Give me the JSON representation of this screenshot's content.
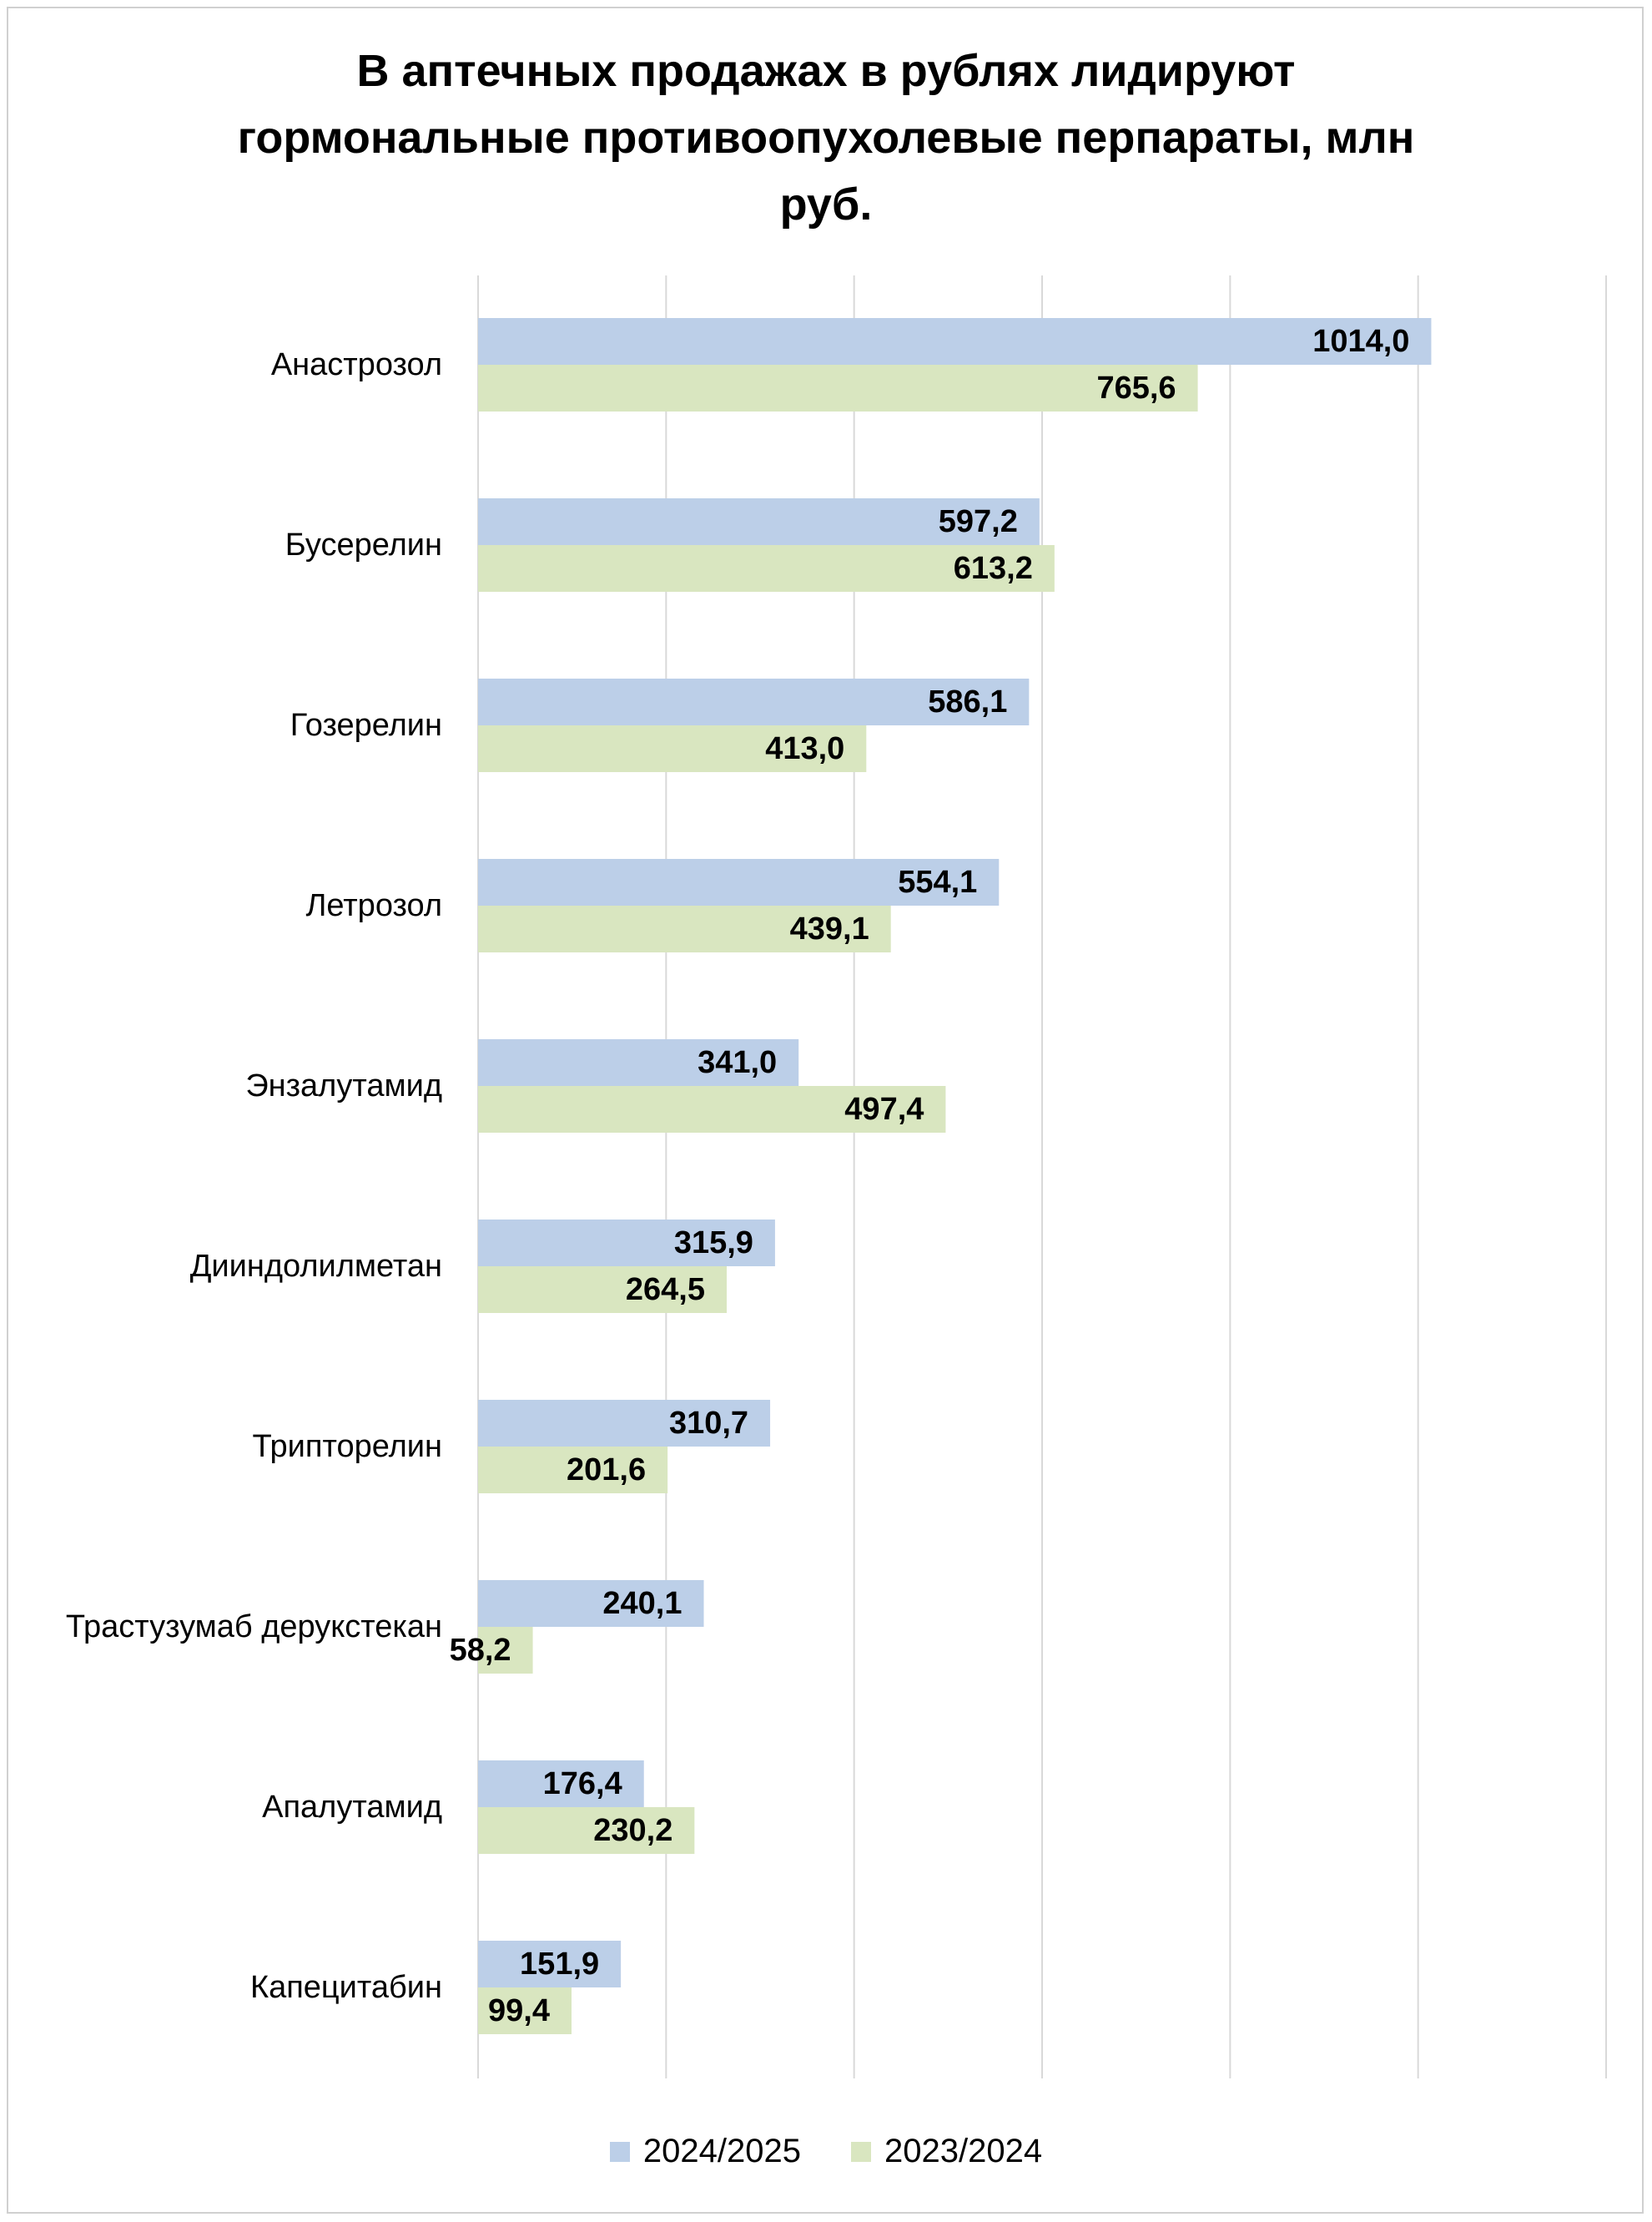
{
  "chart_data": {
    "type": "bar",
    "orientation": "horizontal",
    "title_lines": [
      "В аптечных  продажах в рублях лидируют",
      "гормональные противоопухолевые перпараты, млн",
      "руб."
    ],
    "categories": [
      "Анастрозол",
      "Бусерелин",
      "Гозерелин",
      "Летрозол",
      "Энзалутамид",
      "Дииндолилметан",
      "Трипторелин",
      "Трастузумаб дерукстекан",
      "Апалутамид",
      "Капецитабин"
    ],
    "series": [
      {
        "name": "2024/2025",
        "color": "#bccfe8",
        "values": [
          1014.0,
          597.2,
          586.1,
          554.1,
          341.0,
          315.9,
          310.7,
          240.1,
          176.4,
          151.9
        ],
        "labels": [
          "1014,0",
          "597,2",
          "586,1",
          "554,1",
          "341,0",
          "315,9",
          "310,7",
          "240,1",
          "176,4",
          "151,9"
        ]
      },
      {
        "name": "2023/2024",
        "color": "#d9e6c0",
        "values": [
          765.6,
          613.2,
          413.0,
          439.1,
          497.4,
          264.5,
          201.6,
          58.2,
          230.2,
          99.4
        ],
        "labels": [
          "765,6",
          "613,2",
          "413,0",
          "439,1",
          "497,4",
          "264,5",
          "201,6",
          "58,2",
          "230,2",
          "99,4"
        ]
      }
    ],
    "xlim": [
      0,
      1200
    ],
    "x_gridline_step": 200,
    "grid": true,
    "legend_position": "bottom"
  }
}
